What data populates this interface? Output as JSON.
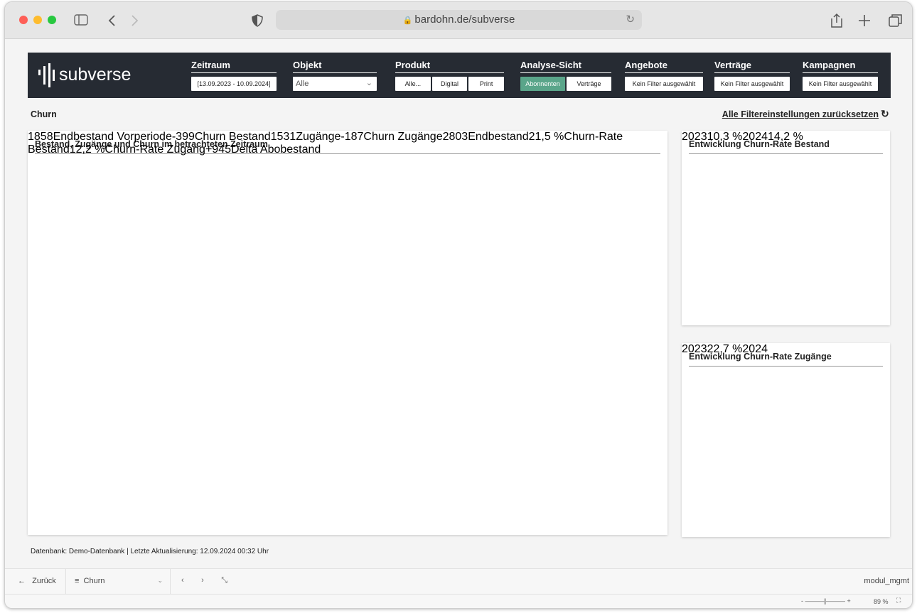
{
  "browser": {
    "url": "bardohn.de/subverse"
  },
  "header": {
    "logo": "subverse",
    "filters": [
      {
        "label": "Zeitraum",
        "value": "[13.09.2023 - 10.09.2024]"
      },
      {
        "label": "Objekt",
        "value": "Alle"
      },
      {
        "label": "Produkt",
        "options": [
          {
            "label": "Alle...",
            "selected": false
          },
          {
            "label": "Digital",
            "selected": false
          },
          {
            "label": "Print",
            "selected": false
          }
        ]
      },
      {
        "label": "Analyse-Sicht",
        "options": [
          {
            "label": "Abonnenten",
            "selected": true
          },
          {
            "label": "Verträge",
            "selected": false
          }
        ]
      },
      {
        "label": "Angebote",
        "value": "Kein Filter ausgewählt"
      },
      {
        "label": "Verträge",
        "value": "Kein Filter ausgewählt"
      },
      {
        "label": "Kampagnen",
        "value": "Kein Filter ausgewählt"
      }
    ]
  },
  "page": {
    "title": "Churn",
    "reset_link": "Alle Filtereinstellungen zurücksetzen",
    "footer_note": "Datenbank: Demo-Datenbank | Letzte Aktualisierung: 12.09.2024 00:32 Uhr"
  },
  "chart_data": [
    {
      "type": "waterfall",
      "title": "Bestand, Zugänge und Churn im betrachteten Zeitraum",
      "categories": [
        "Endbestand Vorperiode",
        "Churn Bestand",
        "Zugänge",
        "Churn Zugänge",
        "Endbestand"
      ],
      "values": [
        1858,
        -399,
        1531,
        -187,
        2803
      ],
      "colors": {
        "total": "#343e4c",
        "decrease": "#8a989f",
        "increase": "#c8d0d6"
      },
      "ylim": [
        0,
        3150
      ],
      "kpis": [
        {
          "value": "21,5 %",
          "label": "Churn-Rate Bestand"
        },
        {
          "value": "12,2 %",
          "label": "Churn-Rate Zugang"
        },
        {
          "value": "+945",
          "label": "Delta Abobestand"
        }
      ]
    },
    {
      "type": "bar",
      "title": "Entwicklung Churn-Rate Bestand",
      "categories": [
        "2023",
        "2024"
      ],
      "values": [
        10.3,
        14.2
      ],
      "value_labels": [
        "10,3 %",
        "14,2 %"
      ],
      "color": "#262b33",
      "ylim": [
        0,
        16
      ]
    },
    {
      "type": "bar",
      "title": "Entwicklung Churn-Rate Zugänge",
      "categories": [
        "2023",
        "2024"
      ],
      "values": [
        22.7,
        0
      ],
      "value_labels": [
        "22,7 %",
        null
      ],
      "color": "#262b33",
      "ylim": [
        0,
        25
      ]
    }
  ],
  "bottom_bar": {
    "back": "Zurück",
    "view": "Churn",
    "module": "modul_mgmt",
    "zoom": "89 %"
  }
}
